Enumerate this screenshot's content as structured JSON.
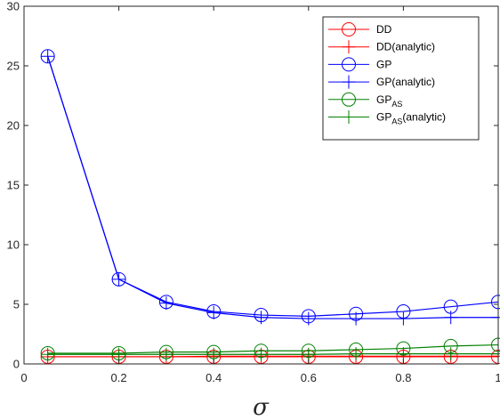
{
  "chart_data": {
    "type": "line",
    "title": "",
    "xlabel": "σ",
    "ylabel": "",
    "xlim": [
      0,
      1
    ],
    "ylim": [
      0,
      30
    ],
    "x_ticks": [
      0,
      0.2,
      0.4,
      0.6,
      0.8,
      1
    ],
    "x_tick_labels": [
      "0",
      "0.2",
      "0.4",
      "0.6",
      "0.8",
      "1"
    ],
    "y_ticks": [
      0,
      5,
      10,
      15,
      20,
      25,
      30
    ],
    "y_tick_labels": [
      "0",
      "5",
      "10",
      "15",
      "20",
      "25",
      "30"
    ],
    "grid": false,
    "legend_position": "top-right",
    "x": [
      0.05,
      0.2,
      0.3,
      0.4,
      0.5,
      0.6,
      0.7,
      0.8,
      0.9,
      1.0
    ],
    "series": [
      {
        "name": "DD",
        "sub": "",
        "suffix": "",
        "color": "#ff0000",
        "marker": "circle",
        "values": [
          0.6,
          0.6,
          0.6,
          0.6,
          0.6,
          0.6,
          0.6,
          0.6,
          0.6,
          0.6
        ]
      },
      {
        "name": "DD(analytic)",
        "sub": "",
        "suffix": "",
        "color": "#ff0000",
        "marker": "plus",
        "values": [
          0.6,
          0.6,
          0.6,
          0.65,
          0.65,
          0.65,
          0.65,
          0.65,
          0.65,
          0.65
        ]
      },
      {
        "name": "GP",
        "sub": "",
        "suffix": "",
        "color": "#0000ff",
        "marker": "circle",
        "values": [
          25.8,
          7.1,
          5.2,
          4.4,
          4.1,
          4.0,
          4.2,
          4.4,
          4.8,
          5.2
        ]
      },
      {
        "name": "GP(analytic)",
        "sub": "",
        "suffix": "",
        "color": "#0000ff",
        "marker": "plus",
        "values": [
          25.8,
          7.1,
          5.1,
          4.3,
          3.9,
          3.8,
          3.8,
          3.8,
          3.9,
          3.9
        ]
      },
      {
        "name": "GP",
        "sub": "AS",
        "suffix": "",
        "color": "#008000",
        "marker": "circle",
        "values": [
          0.9,
          0.9,
          1.0,
          1.0,
          1.1,
          1.1,
          1.2,
          1.3,
          1.5,
          1.6
        ]
      },
      {
        "name": "GP",
        "sub": "AS",
        "suffix": "(analytic)",
        "color": "#008000",
        "marker": "plus",
        "values": [
          0.8,
          0.8,
          0.8,
          0.8,
          0.8,
          0.8,
          0.85,
          0.85,
          0.85,
          0.85
        ]
      }
    ]
  }
}
